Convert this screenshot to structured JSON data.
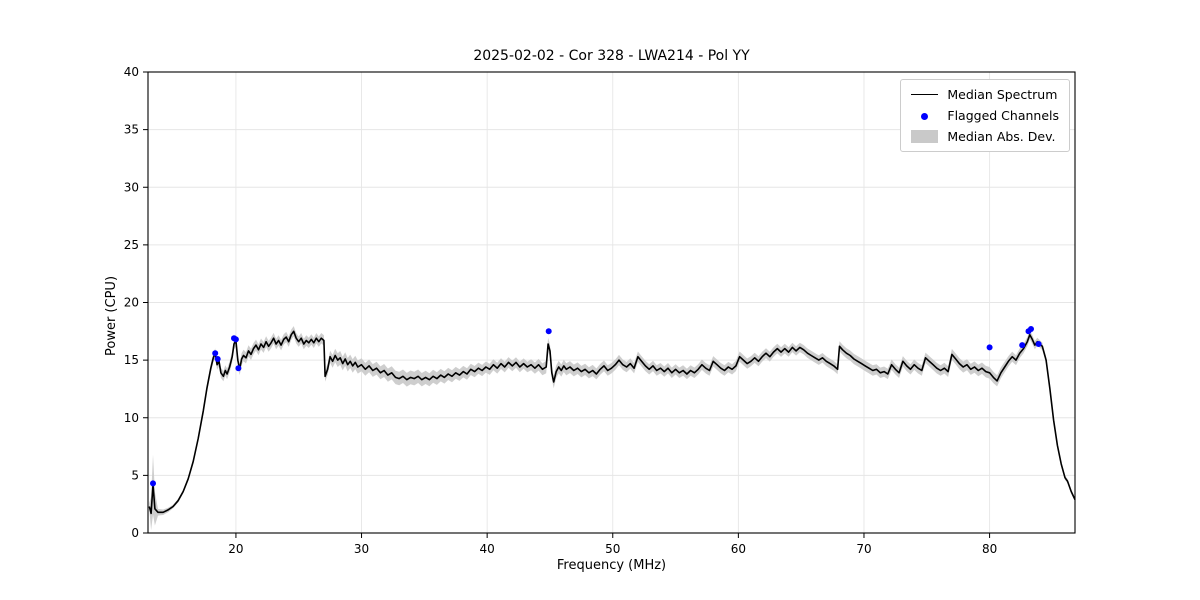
{
  "chart_data": {
    "type": "line",
    "title": "2025-02-02 - Cor 328 - LWA214 - Pol YY",
    "xlabel": "Frequency (MHz)",
    "ylabel": "Power (CPU)",
    "xlim": [
      13.0,
      86.8
    ],
    "ylim": [
      0,
      40
    ],
    "xticks": [
      20,
      30,
      40,
      50,
      60,
      70,
      80
    ],
    "yticks": [
      0,
      5,
      10,
      15,
      20,
      25,
      30,
      35,
      40
    ],
    "grid": true,
    "colors": {
      "median_line": "#000000",
      "flagged": "#0000ff",
      "mad_band": "#c9c9c9"
    },
    "legend": {
      "position": "upper right",
      "entries": [
        "Median Spectrum",
        "Flagged Channels",
        "Median Abs. Dev."
      ]
    },
    "median_spectrum": [
      [
        13.1,
        2.3
      ],
      [
        13.25,
        1.7
      ],
      [
        13.4,
        4.2
      ],
      [
        13.55,
        2.1
      ],
      [
        13.8,
        1.8
      ],
      [
        14.2,
        1.8
      ],
      [
        14.6,
        2.0
      ],
      [
        15.0,
        2.3
      ],
      [
        15.4,
        2.8
      ],
      [
        15.8,
        3.6
      ],
      [
        16.2,
        4.7
      ],
      [
        16.6,
        6.2
      ],
      [
        17.0,
        8.2
      ],
      [
        17.4,
        10.6
      ],
      [
        17.7,
        12.6
      ],
      [
        18.0,
        14.3
      ],
      [
        18.2,
        15.2
      ],
      [
        18.35,
        15.6
      ],
      [
        18.5,
        14.6
      ],
      [
        18.65,
        14.9
      ],
      [
        18.8,
        13.9
      ],
      [
        19.0,
        13.6
      ],
      [
        19.15,
        14.1
      ],
      [
        19.3,
        13.8
      ],
      [
        19.5,
        14.4
      ],
      [
        19.7,
        15.3
      ],
      [
        19.85,
        16.4
      ],
      [
        20.0,
        16.7
      ],
      [
        20.15,
        15.0
      ],
      [
        20.3,
        14.2
      ],
      [
        20.45,
        15.1
      ],
      [
        20.6,
        15.4
      ],
      [
        20.8,
        15.2
      ],
      [
        21.0,
        15.8
      ],
      [
        21.2,
        15.5
      ],
      [
        21.4,
        16.0
      ],
      [
        21.6,
        16.3
      ],
      [
        21.8,
        15.9
      ],
      [
        22.0,
        16.4
      ],
      [
        22.2,
        16.1
      ],
      [
        22.4,
        16.6
      ],
      [
        22.6,
        16.2
      ],
      [
        22.8,
        16.5
      ],
      [
        23.0,
        16.9
      ],
      [
        23.2,
        16.4
      ],
      [
        23.4,
        16.7
      ],
      [
        23.6,
        16.3
      ],
      [
        23.8,
        16.8
      ],
      [
        24.0,
        17.0
      ],
      [
        24.2,
        16.6
      ],
      [
        24.4,
        17.2
      ],
      [
        24.6,
        17.5
      ],
      [
        24.8,
        16.9
      ],
      [
        25.0,
        16.6
      ],
      [
        25.2,
        16.9
      ],
      [
        25.4,
        16.4
      ],
      [
        25.6,
        16.7
      ],
      [
        25.8,
        16.5
      ],
      [
        26.0,
        16.8
      ],
      [
        26.2,
        16.5
      ],
      [
        26.4,
        16.9
      ],
      [
        26.6,
        16.6
      ],
      [
        26.8,
        16.9
      ],
      [
        27.0,
        16.7
      ],
      [
        27.1,
        13.6
      ],
      [
        27.3,
        14.2
      ],
      [
        27.5,
        15.3
      ],
      [
        27.7,
        14.9
      ],
      [
        27.9,
        15.4
      ],
      [
        28.1,
        15.0
      ],
      [
        28.3,
        15.2
      ],
      [
        28.5,
        14.7
      ],
      [
        28.7,
        15.1
      ],
      [
        28.9,
        14.6
      ],
      [
        29.1,
        14.9
      ],
      [
        29.3,
        14.5
      ],
      [
        29.5,
        14.8
      ],
      [
        29.7,
        14.4
      ],
      [
        30.0,
        14.6
      ],
      [
        30.3,
        14.2
      ],
      [
        30.6,
        14.5
      ],
      [
        30.9,
        14.1
      ],
      [
        31.2,
        14.3
      ],
      [
        31.5,
        13.9
      ],
      [
        31.8,
        14.1
      ],
      [
        32.1,
        13.7
      ],
      [
        32.4,
        13.9
      ],
      [
        32.7,
        13.5
      ],
      [
        33.0,
        13.4
      ],
      [
        33.3,
        13.6
      ],
      [
        33.6,
        13.3
      ],
      [
        33.9,
        13.5
      ],
      [
        34.2,
        13.4
      ],
      [
        34.5,
        13.6
      ],
      [
        34.8,
        13.3
      ],
      [
        35.1,
        13.5
      ],
      [
        35.4,
        13.3
      ],
      [
        35.7,
        13.6
      ],
      [
        36.0,
        13.4
      ],
      [
        36.3,
        13.7
      ],
      [
        36.6,
        13.5
      ],
      [
        36.9,
        13.8
      ],
      [
        37.2,
        13.6
      ],
      [
        37.5,
        13.9
      ],
      [
        37.8,
        13.7
      ],
      [
        38.1,
        14.0
      ],
      [
        38.4,
        13.8
      ],
      [
        38.7,
        14.2
      ],
      [
        39.0,
        14.0
      ],
      [
        39.3,
        14.3
      ],
      [
        39.6,
        14.1
      ],
      [
        39.9,
        14.4
      ],
      [
        40.2,
        14.2
      ],
      [
        40.5,
        14.6
      ],
      [
        40.8,
        14.3
      ],
      [
        41.1,
        14.7
      ],
      [
        41.4,
        14.4
      ],
      [
        41.7,
        14.8
      ],
      [
        42.0,
        14.5
      ],
      [
        42.3,
        14.8
      ],
      [
        42.6,
        14.4
      ],
      [
        42.9,
        14.7
      ],
      [
        43.2,
        14.4
      ],
      [
        43.5,
        14.6
      ],
      [
        43.8,
        14.3
      ],
      [
        44.1,
        14.6
      ],
      [
        44.4,
        14.2
      ],
      [
        44.7,
        14.4
      ],
      [
        44.85,
        16.4
      ],
      [
        45.0,
        15.8
      ],
      [
        45.15,
        13.9
      ],
      [
        45.3,
        13.1
      ],
      [
        45.5,
        14.0
      ],
      [
        45.7,
        14.4
      ],
      [
        45.9,
        14.1
      ],
      [
        46.1,
        14.5
      ],
      [
        46.3,
        14.2
      ],
      [
        46.6,
        14.4
      ],
      [
        46.9,
        14.1
      ],
      [
        47.2,
        14.3
      ],
      [
        47.5,
        14.0
      ],
      [
        47.8,
        14.2
      ],
      [
        48.1,
        13.9
      ],
      [
        48.4,
        14.1
      ],
      [
        48.7,
        13.8
      ],
      [
        49.0,
        14.2
      ],
      [
        49.3,
        14.5
      ],
      [
        49.6,
        14.1
      ],
      [
        49.9,
        14.3
      ],
      [
        50.2,
        14.6
      ],
      [
        50.5,
        15.0
      ],
      [
        50.8,
        14.6
      ],
      [
        51.1,
        14.4
      ],
      [
        51.4,
        14.7
      ],
      [
        51.7,
        14.3
      ],
      [
        52.0,
        15.3
      ],
      [
        52.3,
        14.9
      ],
      [
        52.6,
        14.5
      ],
      [
        52.9,
        14.2
      ],
      [
        53.2,
        14.5
      ],
      [
        53.5,
        14.1
      ],
      [
        53.8,
        14.3
      ],
      [
        54.1,
        14.0
      ],
      [
        54.4,
        14.3
      ],
      [
        54.7,
        13.9
      ],
      [
        55.0,
        14.2
      ],
      [
        55.3,
        13.9
      ],
      [
        55.6,
        14.1
      ],
      [
        55.9,
        13.8
      ],
      [
        56.2,
        14.1
      ],
      [
        56.5,
        13.9
      ],
      [
        56.8,
        14.2
      ],
      [
        57.1,
        14.6
      ],
      [
        57.4,
        14.3
      ],
      [
        57.7,
        14.1
      ],
      [
        58.0,
        14.9
      ],
      [
        58.3,
        14.6
      ],
      [
        58.6,
        14.3
      ],
      [
        58.9,
        14.1
      ],
      [
        59.2,
        14.4
      ],
      [
        59.5,
        14.2
      ],
      [
        59.8,
        14.5
      ],
      [
        60.1,
        15.3
      ],
      [
        60.4,
        15.0
      ],
      [
        60.7,
        14.7
      ],
      [
        61.0,
        14.9
      ],
      [
        61.3,
        15.2
      ],
      [
        61.6,
        14.9
      ],
      [
        61.9,
        15.3
      ],
      [
        62.2,
        15.6
      ],
      [
        62.5,
        15.3
      ],
      [
        62.8,
        15.7
      ],
      [
        63.1,
        16.0
      ],
      [
        63.4,
        15.7
      ],
      [
        63.7,
        16.0
      ],
      [
        64.0,
        15.7
      ],
      [
        64.3,
        16.1
      ],
      [
        64.6,
        15.8
      ],
      [
        64.9,
        16.1
      ],
      [
        65.2,
        15.9
      ],
      [
        65.5,
        15.6
      ],
      [
        65.8,
        15.4
      ],
      [
        66.1,
        15.2
      ],
      [
        66.4,
        15.0
      ],
      [
        66.7,
        15.2
      ],
      [
        67.0,
        14.9
      ],
      [
        67.3,
        14.7
      ],
      [
        67.6,
        14.5
      ],
      [
        67.9,
        14.2
      ],
      [
        68.05,
        16.2
      ],
      [
        68.3,
        15.9
      ],
      [
        68.6,
        15.6
      ],
      [
        68.9,
        15.4
      ],
      [
        69.2,
        15.1
      ],
      [
        69.5,
        14.9
      ],
      [
        69.8,
        14.7
      ],
      [
        70.1,
        14.5
      ],
      [
        70.4,
        14.3
      ],
      [
        70.7,
        14.1
      ],
      [
        71.0,
        14.2
      ],
      [
        71.3,
        13.9
      ],
      [
        71.6,
        14.0
      ],
      [
        71.9,
        13.8
      ],
      [
        72.2,
        14.6
      ],
      [
        72.5,
        14.2
      ],
      [
        72.8,
        13.9
      ],
      [
        73.1,
        14.9
      ],
      [
        73.4,
        14.5
      ],
      [
        73.7,
        14.2
      ],
      [
        74.0,
        14.6
      ],
      [
        74.3,
        14.3
      ],
      [
        74.6,
        14.1
      ],
      [
        74.9,
        15.2
      ],
      [
        75.2,
        14.9
      ],
      [
        75.5,
        14.6
      ],
      [
        75.8,
        14.3
      ],
      [
        76.1,
        14.1
      ],
      [
        76.4,
        14.3
      ],
      [
        76.7,
        14.0
      ],
      [
        77.0,
        15.5
      ],
      [
        77.3,
        15.1
      ],
      [
        77.6,
        14.7
      ],
      [
        77.9,
        14.4
      ],
      [
        78.2,
        14.6
      ],
      [
        78.5,
        14.2
      ],
      [
        78.8,
        14.4
      ],
      [
        79.1,
        14.1
      ],
      [
        79.4,
        14.3
      ],
      [
        79.7,
        14.0
      ],
      [
        80.0,
        13.9
      ],
      [
        80.3,
        13.5
      ],
      [
        80.6,
        13.2
      ],
      [
        80.9,
        13.9
      ],
      [
        81.2,
        14.4
      ],
      [
        81.5,
        14.9
      ],
      [
        81.8,
        15.3
      ],
      [
        82.1,
        15.0
      ],
      [
        82.4,
        15.6
      ],
      [
        82.7,
        16.0
      ],
      [
        83.0,
        16.6
      ],
      [
        83.2,
        17.2
      ],
      [
        83.4,
        16.8
      ],
      [
        83.6,
        16.3
      ],
      [
        83.8,
        16.6
      ],
      [
        84.0,
        16.4
      ],
      [
        84.2,
        16.2
      ],
      [
        84.5,
        15.0
      ],
      [
        84.8,
        12.5
      ],
      [
        85.1,
        9.8
      ],
      [
        85.4,
        7.6
      ],
      [
        85.7,
        6.0
      ],
      [
        86.0,
        4.8
      ],
      [
        86.2,
        4.5
      ],
      [
        86.5,
        3.6
      ],
      [
        86.8,
        2.9
      ]
    ],
    "flagged_channels": [
      [
        13.4,
        4.3
      ],
      [
        18.35,
        15.6
      ],
      [
        18.55,
        15.1
      ],
      [
        19.85,
        16.9
      ],
      [
        20.0,
        16.8
      ],
      [
        20.2,
        14.3
      ],
      [
        44.9,
        17.5
      ],
      [
        80.0,
        16.1
      ],
      [
        82.6,
        16.3
      ],
      [
        83.1,
        17.5
      ],
      [
        83.3,
        17.7
      ],
      [
        83.9,
        16.4
      ]
    ],
    "mad_control_points": [
      [
        13.1,
        0.3
      ],
      [
        13.4,
        2.6
      ],
      [
        13.7,
        0.3
      ],
      [
        15.0,
        0.15
      ],
      [
        17.0,
        0.2
      ],
      [
        18.0,
        0.4
      ],
      [
        20.0,
        0.5
      ],
      [
        24.0,
        0.45
      ],
      [
        27.0,
        0.45
      ],
      [
        28.0,
        0.6
      ],
      [
        31.0,
        0.55
      ],
      [
        34.0,
        0.6
      ],
      [
        38.0,
        0.5
      ],
      [
        43.0,
        0.45
      ],
      [
        45.0,
        0.55
      ],
      [
        50.0,
        0.45
      ],
      [
        55.0,
        0.45
      ],
      [
        60.0,
        0.45
      ],
      [
        65.0,
        0.4
      ],
      [
        70.0,
        0.45
      ],
      [
        75.0,
        0.45
      ],
      [
        80.0,
        0.5
      ],
      [
        83.0,
        0.4
      ],
      [
        84.5,
        0.3
      ],
      [
        86.0,
        0.2
      ],
      [
        86.8,
        0.15
      ]
    ]
  }
}
